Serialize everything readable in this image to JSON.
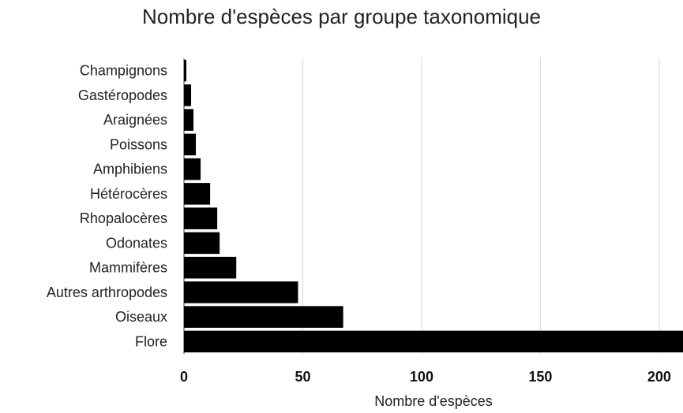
{
  "chart_data": {
    "type": "bar",
    "orientation": "horizontal",
    "title": "Nombre d'espèces par groupe taxonomique",
    "xlabel": "Nombre d'espèces",
    "ylabel": "",
    "categories": [
      "Champignons",
      "Gastéropodes",
      "Araignées",
      "Poissons",
      "Amphibiens",
      "Hétérocères",
      "Rhopalocères",
      "Odonates",
      "Mammifères",
      "Autres arthropodes",
      "Oiseaux",
      "Flore"
    ],
    "values": [
      1,
      3,
      4,
      5,
      7,
      11,
      14,
      15,
      22,
      48,
      67,
      212
    ],
    "xlim": [
      0,
      210
    ],
    "xticks": [
      0,
      50,
      100,
      150,
      200
    ],
    "grid": "vertical",
    "legend": "none",
    "colors": {
      "bar": "#000000",
      "grid": "#d9d9d9"
    }
  }
}
